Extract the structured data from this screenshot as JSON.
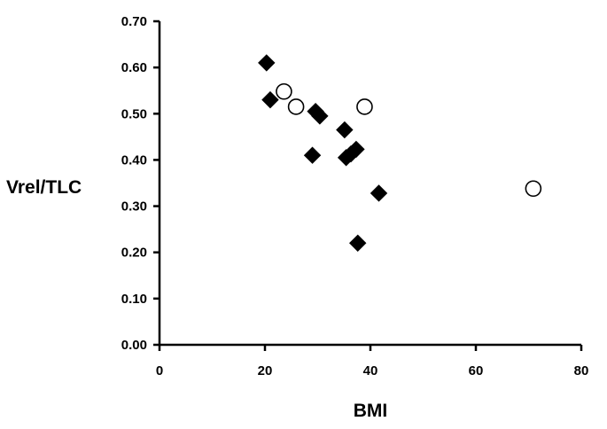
{
  "chart_data": {
    "type": "scatter",
    "title": "",
    "xlabel": "BMI",
    "ylabel": "Vrel/TLC",
    "xlim": [
      0,
      80
    ],
    "ylim": [
      0.0,
      0.7
    ],
    "x_ticks": [
      "0",
      "20",
      "40",
      "60",
      "80"
    ],
    "y_ticks": [
      "0.00",
      "0.10",
      "0.20",
      "0.30",
      "0.40",
      "0.50",
      "0.60",
      "0.70"
    ],
    "x_tick_values": [
      0,
      20,
      40,
      60,
      80
    ],
    "y_tick_values": [
      0.0,
      0.1,
      0.2,
      0.3,
      0.4,
      0.5,
      0.6,
      0.7
    ],
    "grid": false,
    "legend": "none",
    "series": [
      {
        "marker": "filled-diamond",
        "color": "#000000",
        "points": [
          {
            "x": 20.3,
            "y": 0.61
          },
          {
            "x": 21.0,
            "y": 0.53
          },
          {
            "x": 29.0,
            "y": 0.41
          },
          {
            "x": 29.6,
            "y": 0.505
          },
          {
            "x": 30.4,
            "y": 0.495
          },
          {
            "x": 35.1,
            "y": 0.465
          },
          {
            "x": 35.4,
            "y": 0.405
          },
          {
            "x": 36.3,
            "y": 0.413
          },
          {
            "x": 37.3,
            "y": 0.423
          },
          {
            "x": 37.6,
            "y": 0.22
          },
          {
            "x": 41.6,
            "y": 0.328
          }
        ]
      },
      {
        "marker": "open-circle",
        "color": "#000000",
        "points": [
          {
            "x": 23.6,
            "y": 0.548
          },
          {
            "x": 25.9,
            "y": 0.515
          },
          {
            "x": 38.9,
            "y": 0.515
          },
          {
            "x": 70.9,
            "y": 0.338
          }
        ]
      }
    ]
  }
}
